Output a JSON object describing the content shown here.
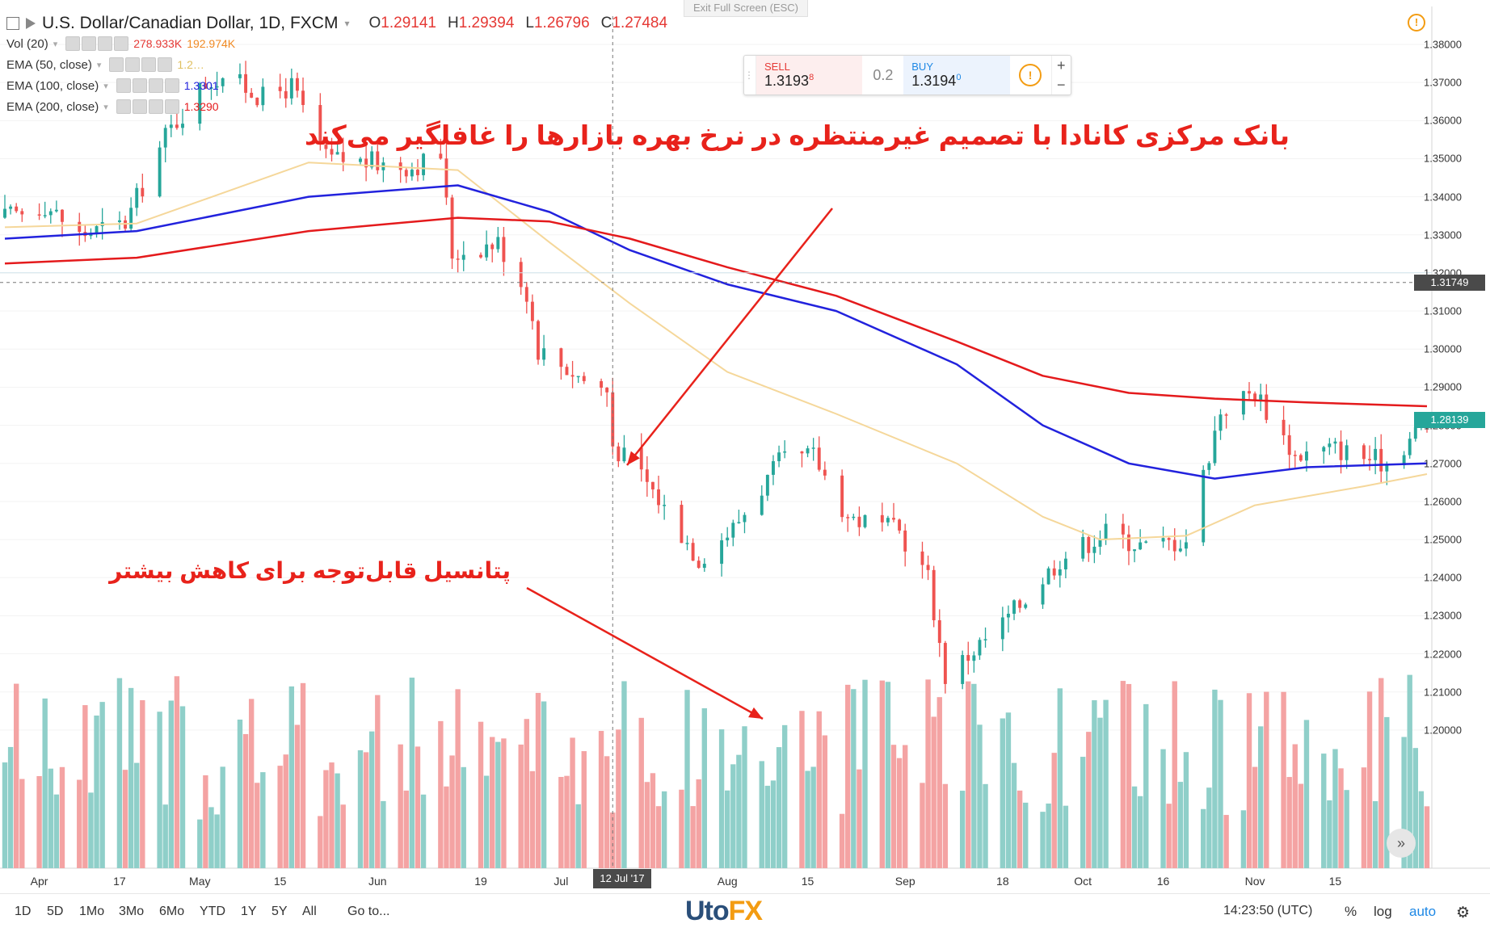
{
  "header": {
    "symbol": "U.S. Dollar/Canadian Dollar, 1D, FXCM",
    "open_key": "O",
    "open": "1.29141",
    "high_key": "H",
    "high": "1.29394",
    "low_key": "L",
    "low": "1.26796",
    "close_key": "C",
    "close": "1.27484"
  },
  "indicators": [
    {
      "label": "Vol (20)",
      "values": [
        "278.933K",
        "192.974K"
      ]
    },
    {
      "label": "EMA (50, close)",
      "values": [
        "1.2…"
      ]
    },
    {
      "label": "EMA (100, close)",
      "values": [
        "1.3301"
      ]
    },
    {
      "label": "EMA (200, close)",
      "values": [
        "1.3290"
      ]
    }
  ],
  "exit_fullscreen": "Exit Full Screen (ESC)",
  "trade_panel": {
    "sell_label": "SELL",
    "sell_price": "1.3193",
    "sell_sup": "8",
    "spread": "0.2",
    "buy_label": "BUY",
    "buy_price": "1.3194",
    "buy_sup": "0",
    "info_icon": "!",
    "plus": "+",
    "minus": "−"
  },
  "annotations": {
    "headline": "بانک مرکزی کانادا با تصمیم غیرمنتظره در نرخ بهره بازارها را غافلگیر می‌کند",
    "subline": "پتانسیل قابل‌توجه برای کاهش بیشتر"
  },
  "colors": {
    "up": "#26a69a",
    "down": "#ef5350",
    "vol_up": "#8fcfc9",
    "vol_down": "#f4a3a3",
    "ema50": "#f5d79a",
    "ema100": "#2222dd",
    "ema200": "#e41a1c",
    "annotation": "#e8221b"
  },
  "bottom_bar": {
    "timeframes": [
      "1D",
      "5D",
      "1Mo",
      "3Mo",
      "6Mo",
      "YTD",
      "1Y",
      "5Y",
      "All"
    ],
    "goto": "Go to...",
    "logo_main": "Uto",
    "logo_accent": "FX",
    "time": "14:23:50 (UTC)",
    "percent": "%",
    "log": "log",
    "auto": "auto",
    "settings_icon": "gear-icon"
  },
  "crosshair": {
    "date_label": "12 Jul '17",
    "price_label": "1.31749"
  },
  "chart_data": {
    "type": "candlestick",
    "title": "U.S. Dollar/Canadian Dollar, 1D, FXCM",
    "xlabel": "",
    "ylabel": "",
    "ylim": [
      1.195,
      1.385
    ],
    "y_ticks": [
      "1.38000",
      "1.37000",
      "1.36000",
      "1.35000",
      "1.34000",
      "1.33000",
      "1.32000",
      "1.31000",
      "1.30000",
      "1.29000",
      "1.28000",
      "1.27000",
      "1.26000",
      "1.25000",
      "1.24000",
      "1.23000",
      "1.22000",
      "1.21000",
      "1.20000"
    ],
    "x_ticks": [
      "Apr",
      "17",
      "May",
      "15",
      "Jun",
      "19",
      "Jul",
      "Aug",
      "15",
      "Sep",
      "18",
      "Oct",
      "16",
      "Nov",
      "15"
    ],
    "last_price": "1.28139",
    "start_date": "2017-03-28",
    "end_date": "2017-12-01",
    "anchors": [
      [
        "2017-03-28",
        1.3345
      ],
      [
        "2017-04-04",
        1.338
      ],
      [
        "2017-04-10",
        1.33
      ],
      [
        "2017-04-18",
        1.333
      ],
      [
        "2017-04-25",
        1.356
      ],
      [
        "2017-05-02",
        1.37
      ],
      [
        "2017-05-05",
        1.372
      ],
      [
        "2017-05-12",
        1.366
      ],
      [
        "2017-05-17",
        1.369
      ],
      [
        "2017-05-23",
        1.35
      ],
      [
        "2017-05-31",
        1.349
      ],
      [
        "2017-06-07",
        1.348
      ],
      [
        "2017-06-12",
        1.351
      ],
      [
        "2017-06-14",
        1.325
      ],
      [
        "2017-06-22",
        1.328
      ],
      [
        "2017-06-27",
        1.315
      ],
      [
        "2017-06-29",
        1.3
      ],
      [
        "2017-07-07",
        1.292
      ],
      [
        "2017-07-11",
        1.289
      ],
      [
        "2017-07-12",
        1.275
      ],
      [
        "2017-07-18",
        1.265
      ],
      [
        "2017-07-27",
        1.245
      ],
      [
        "2017-08-02",
        1.253
      ],
      [
        "2017-08-10",
        1.27
      ],
      [
        "2017-08-16",
        1.272
      ],
      [
        "2017-08-22",
        1.256
      ],
      [
        "2017-08-31",
        1.252
      ],
      [
        "2017-09-05",
        1.24
      ],
      [
        "2017-09-08",
        1.214
      ],
      [
        "2017-09-18",
        1.228
      ],
      [
        "2017-09-28",
        1.245
      ],
      [
        "2017-10-06",
        1.252
      ],
      [
        "2017-10-13",
        1.248
      ],
      [
        "2017-10-20",
        1.25
      ],
      [
        "2017-10-26",
        1.284
      ],
      [
        "2017-11-01",
        1.289
      ],
      [
        "2017-11-08",
        1.272
      ],
      [
        "2017-11-15",
        1.274
      ],
      [
        "2017-11-24",
        1.27
      ],
      [
        "2017-12-01",
        1.2814
      ]
    ],
    "volume_range": [
      0,
      300000
    ],
    "ema50": [
      [
        "2017-03-28",
        1.332
      ],
      [
        "2017-04-20",
        1.333
      ],
      [
        "2017-05-20",
        1.349
      ],
      [
        "2017-06-15",
        1.347
      ],
      [
        "2017-07-01",
        1.328
      ],
      [
        "2017-07-15",
        1.312
      ],
      [
        "2017-08-01",
        1.294
      ],
      [
        "2017-08-20",
        1.283
      ],
      [
        "2017-09-10",
        1.27
      ],
      [
        "2017-09-25",
        1.256
      ],
      [
        "2017-10-05",
        1.25
      ],
      [
        "2017-10-20",
        1.251
      ],
      [
        "2017-11-01",
        1.259
      ],
      [
        "2017-11-20",
        1.264
      ],
      [
        "2017-12-01",
        1.2672
      ]
    ],
    "ema100": [
      [
        "2017-03-28",
        1.329
      ],
      [
        "2017-04-20",
        1.331
      ],
      [
        "2017-05-20",
        1.34
      ],
      [
        "2017-06-15",
        1.343
      ],
      [
        "2017-07-01",
        1.336
      ],
      [
        "2017-07-15",
        1.326
      ],
      [
        "2017-08-01",
        1.317
      ],
      [
        "2017-08-20",
        1.31
      ],
      [
        "2017-09-10",
        1.296
      ],
      [
        "2017-09-25",
        1.28
      ],
      [
        "2017-10-10",
        1.27
      ],
      [
        "2017-10-25",
        1.266
      ],
      [
        "2017-11-10",
        1.269
      ],
      [
        "2017-12-01",
        1.27
      ]
    ],
    "ema200": [
      [
        "2017-03-28",
        1.3225
      ],
      [
        "2017-04-20",
        1.324
      ],
      [
        "2017-05-20",
        1.331
      ],
      [
        "2017-06-15",
        1.3345
      ],
      [
        "2017-07-01",
        1.3335
      ],
      [
        "2017-07-15",
        1.329
      ],
      [
        "2017-08-01",
        1.3215
      ],
      [
        "2017-08-20",
        1.314
      ],
      [
        "2017-09-10",
        1.302
      ],
      [
        "2017-09-25",
        1.293
      ],
      [
        "2017-10-10",
        1.2885
      ],
      [
        "2017-10-25",
        1.287
      ],
      [
        "2017-11-10",
        1.286
      ],
      [
        "2017-12-01",
        1.285
      ]
    ]
  }
}
